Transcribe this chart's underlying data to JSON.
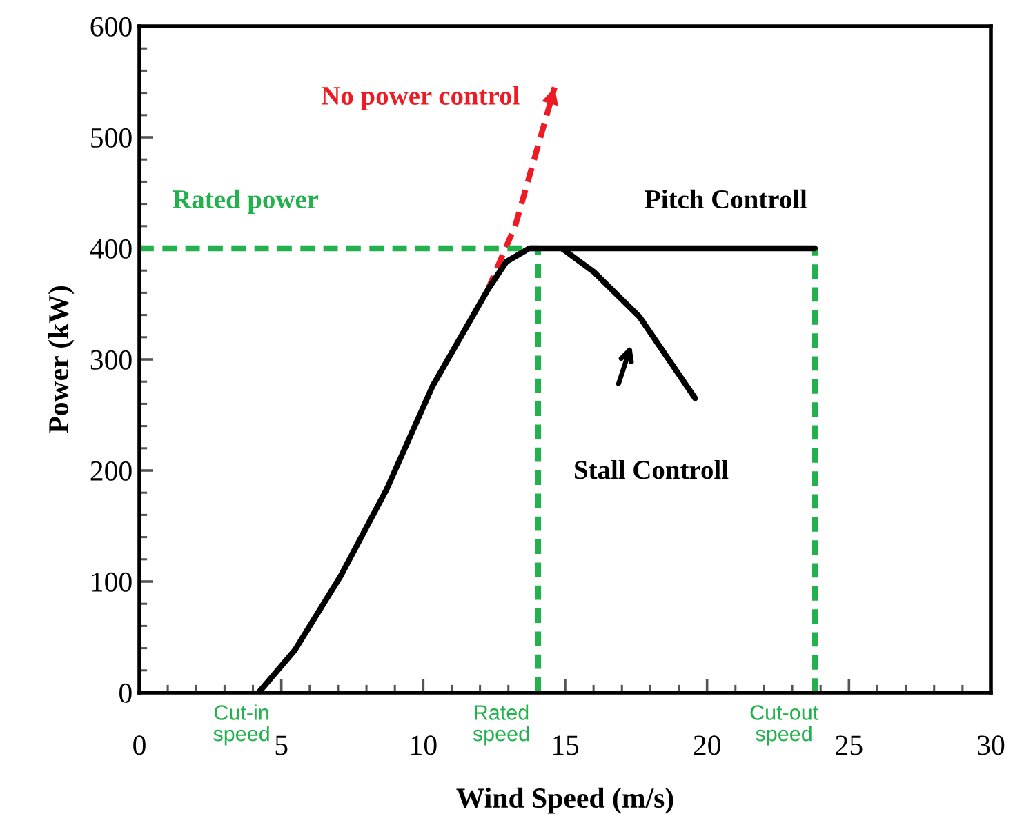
{
  "chart_data": {
    "type": "line",
    "xlabel": "Wind Speed (m/s)",
    "ylabel": "Power (kW)",
    "xlim": [
      0,
      30
    ],
    "xticks": [
      0,
      5,
      10,
      15,
      20,
      25,
      30
    ],
    "ylim": [
      0,
      600
    ],
    "yticks": [
      0,
      100,
      200,
      300,
      400,
      500,
      600
    ],
    "grid": false,
    "legend": false,
    "marker": "none",
    "series": [
      {
        "color": "#000000",
        "line_style": "solid",
        "x": [
          4.2,
          5.47,
          7.09,
          8.71,
          10.33,
          12.28,
          12.93,
          13.74,
          14.05,
          23.8
        ],
        "values": [
          0,
          38,
          105,
          183,
          276,
          363,
          388,
          400,
          400,
          400
        ]
      },
      {
        "color": "#000000",
        "line_style": "solid",
        "x": [
          14.88,
          16.0,
          17.63,
          19.58
        ],
        "values": [
          400,
          379,
          338,
          265
        ]
      },
      {
        "color": "#ed1c24",
        "line_style": "dashed",
        "x": [
          12.28,
          13.25,
          14.63
        ],
        "values": [
          363,
          421,
          545
        ]
      },
      {
        "color": "#22b14c",
        "line_style": "dashed",
        "x": [
          0,
          14.05,
          14.05
        ],
        "values": [
          400,
          400,
          0
        ]
      },
      {
        "color": "#22b14c",
        "line_style": "dashed",
        "x": [
          23.8,
          23.8
        ],
        "values": [
          0,
          400
        ]
      }
    ],
    "annotations": [
      {
        "text": "No power control",
        "x": 14.63,
        "y": 545
      },
      {
        "text": "Rated power",
        "x": 0,
        "y": 400
      },
      {
        "text": "Pitch Controll",
        "x": 23.8,
        "y": 400
      },
      {
        "text": "Stall Controll",
        "x": 19.58,
        "y": 265
      },
      "Cut-in speed",
      "Rated speed",
      "Cut-out speed"
    ]
  }
}
